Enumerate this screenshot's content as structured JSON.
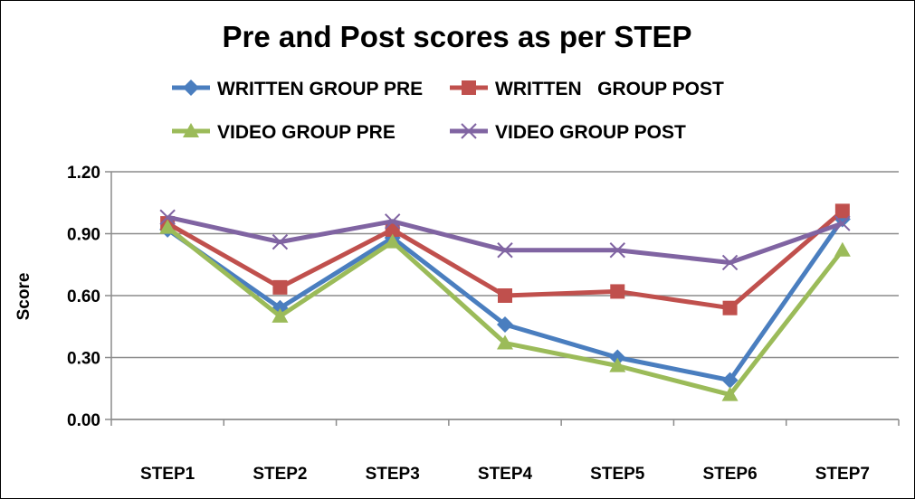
{
  "chart_data": {
    "type": "line",
    "title": "Pre and Post scores as per STEP",
    "xlabel": "",
    "ylabel": "Score",
    "categories": [
      "STEP1",
      "STEP2",
      "STEP3",
      "STEP4",
      "STEP5",
      "STEP6",
      "STEP7"
    ],
    "ylim": [
      0,
      1.2
    ],
    "yticks": [
      "0.00",
      "0.30",
      "0.60",
      "0.90",
      "1.20"
    ],
    "grid": true,
    "legend_position": "top",
    "series": [
      {
        "name": "WRITTEN GROUP PRE",
        "color": "#4a7ebf",
        "marker": "diamond",
        "values": [
          0.92,
          0.54,
          0.88,
          0.46,
          0.3,
          0.19,
          0.97
        ]
      },
      {
        "name": "WRITTEN   GROUP POST",
        "color": "#c0504d",
        "marker": "square",
        "values": [
          0.95,
          0.64,
          0.92,
          0.6,
          0.62,
          0.54,
          1.01
        ]
      },
      {
        "name": "VIDEO GROUP PRE",
        "color": "#9bbb59",
        "marker": "triangle",
        "values": [
          0.93,
          0.5,
          0.86,
          0.37,
          0.26,
          0.12,
          0.82
        ]
      },
      {
        "name": "VIDEO GROUP POST",
        "color": "#8064a2",
        "marker": "x",
        "values": [
          0.98,
          0.86,
          0.96,
          0.82,
          0.82,
          0.76,
          0.95
        ]
      }
    ]
  }
}
